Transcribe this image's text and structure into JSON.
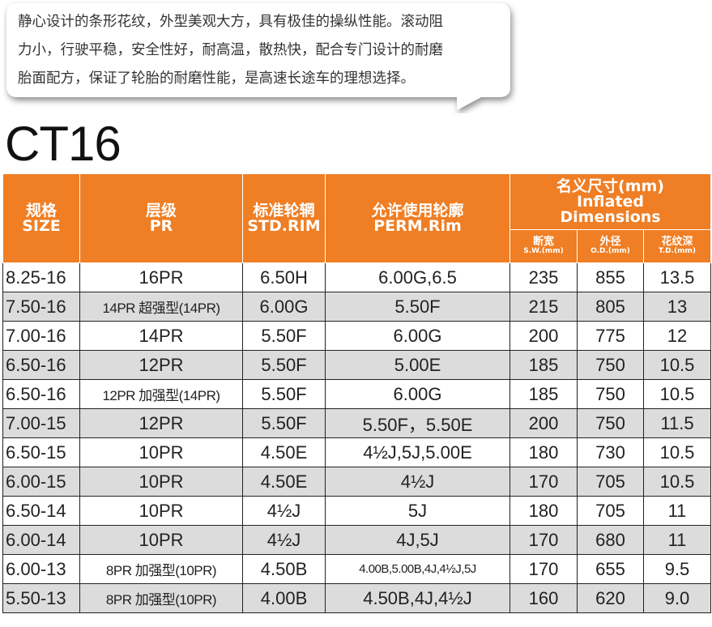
{
  "intro": {
    "lines": [
      "静心设计的条形花纹，外型美观大方，具有极佳的操纵性能。滚动阻",
      "力小，行驶平稳，安全性好，耐高温，散热快，配合专门设计的耐磨",
      "胎面配方，保证了轮胎的耐磨性能，是高速长途车的理想选择。"
    ]
  },
  "model": "CT16",
  "table": {
    "headers": {
      "size_cn": "规格",
      "size_en": "SIZE",
      "pr_cn": "层级",
      "pr_en": "PR",
      "rim_cn": "标准轮辋",
      "rim_en": "STD.RIM",
      "perm_cn": "允许使用轮廓",
      "perm_en": "PERM.Rim",
      "dim_cn": "名义尺寸(mm)",
      "dim_en1": "Inflated",
      "dim_en2": "Dimensions",
      "sw_cn": "断宽",
      "sw_en": "S.W.(mm)",
      "od_cn": "外径",
      "od_en": "O.D.(mm)",
      "td_cn": "花纹深",
      "td_en": "T.D.(mm)"
    },
    "rows": [
      {
        "size": "8.25-16",
        "pr": "16PR",
        "rim": "6.50H",
        "perm": "6.00G,6.5",
        "sw": "235",
        "od": "855",
        "td": "13.5"
      },
      {
        "size": "7.50-16",
        "pr": "14PR 超强型(14PR)",
        "rim": "6.00G",
        "perm": "5.50F",
        "sw": "215",
        "od": "805",
        "td": "13"
      },
      {
        "size": "7.00-16",
        "pr": "14PR",
        "rim": "5.50F",
        "perm": "6.00G",
        "sw": "200",
        "od": "775",
        "td": "12"
      },
      {
        "size": "6.50-16",
        "pr": "12PR",
        "rim": "5.50F",
        "perm": "5.00E",
        "sw": "185",
        "od": "750",
        "td": "10.5"
      },
      {
        "size": "6.50-16",
        "pr": "12PR 加强型(14PR)",
        "rim": "5.50F",
        "perm": "6.00G",
        "sw": "185",
        "od": "750",
        "td": "10.5"
      },
      {
        "size": "7.00-15",
        "pr": "12PR",
        "rim": "5.50F",
        "perm": "5.50F，5.50E",
        "sw": "200",
        "od": "750",
        "td": "11.5"
      },
      {
        "size": "6.50-15",
        "pr": "10PR",
        "rim": "4.50E",
        "perm": "4½J,5J,5.00E",
        "sw": "180",
        "od": "730",
        "td": "10.5"
      },
      {
        "size": "6.00-15",
        "pr": "10PR",
        "rim": "4.50E",
        "perm": "4½J",
        "sw": "170",
        "od": "705",
        "td": "10.5"
      },
      {
        "size": "6.50-14",
        "pr": "10PR",
        "rim": "4½J",
        "perm": "5J",
        "sw": "180",
        "od": "705",
        "td": "11"
      },
      {
        "size": "6.00-14",
        "pr": "10PR",
        "rim": "4½J",
        "perm": "4J,5J",
        "sw": "170",
        "od": "680",
        "td": "11"
      },
      {
        "size": "6.00-13",
        "pr": "8PR 加强型(10PR)",
        "rim": "4.50B",
        "perm": "4.00B,5.00B,4J,4½J,5J",
        "sw": "170",
        "od": "655",
        "td": "9.5"
      },
      {
        "size": "5.50-13",
        "pr": "8PR 加强型(10PR)",
        "rim": "4.00B",
        "perm": "4.50B,4J,4½J",
        "sw": "160",
        "od": "620",
        "td": "9.0"
      }
    ]
  },
  "colors": {
    "header_bg": "#ef7e24",
    "alt_row": "#dcdcdc",
    "bubble_fill": "#ffffff"
  }
}
